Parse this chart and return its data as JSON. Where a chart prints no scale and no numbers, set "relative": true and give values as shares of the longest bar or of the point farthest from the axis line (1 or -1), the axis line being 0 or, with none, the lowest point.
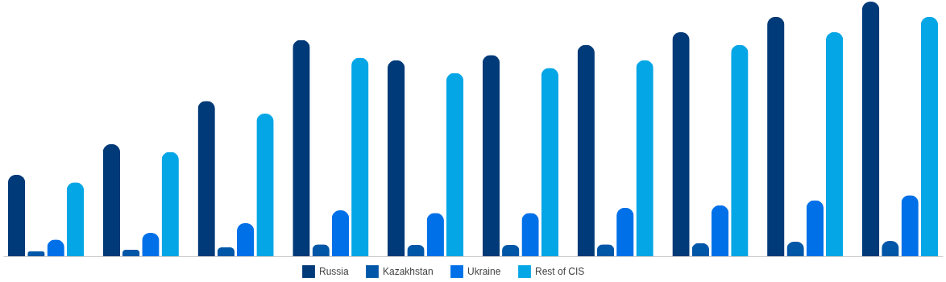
{
  "chart_data": {
    "type": "bar",
    "relative": true,
    "legend": "bottom",
    "categories": [
      null,
      null,
      null,
      null,
      null,
      null,
      null,
      null,
      null,
      null
    ],
    "series": [
      {
        "name": "Russia",
        "color": "#003a78",
        "values": [
          0.32,
          0.44,
          0.61,
          0.85,
          0.77,
          0.79,
          0.83,
          0.88,
          0.94,
          1
        ]
      },
      {
        "name": "Kazakhstan",
        "color": "#0057a8",
        "values": [
          0.019,
          0.025,
          0.035,
          0.047,
          0.044,
          0.044,
          0.047,
          0.051,
          0.057,
          0.06
        ]
      },
      {
        "name": "Ukraine",
        "color": "#0070e8",
        "values": [
          0.066,
          0.092,
          0.13,
          0.18,
          0.17,
          0.17,
          0.19,
          0.2,
          0.22,
          0.24
        ]
      },
      {
        "name": "Rest of CIS",
        "color": "#05a6e6",
        "values": [
          0.29,
          0.41,
          0.56,
          0.78,
          0.72,
          0.74,
          0.77,
          0.83,
          0.88,
          0.94
        ]
      }
    ]
  }
}
